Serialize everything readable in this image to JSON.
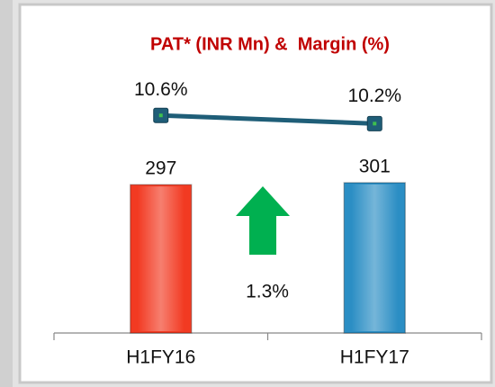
{
  "chart_data": {
    "type": "bar",
    "title": "PAT* (INR Mn) &  Margin (%)",
    "categories": [
      "H1FY16",
      "H1FY17"
    ],
    "series": [
      {
        "type": "bar",
        "colors": [
          "#f23a22",
          "#2b8ec4"
        ],
        "values": [
          297,
          301
        ]
      },
      {
        "type": "line",
        "axis": "y2",
        "color": "#1f5e78",
        "values": [
          10.6,
          10.2
        ],
        "value_labels": [
          "10.6%",
          "10.2%"
        ]
      }
    ],
    "annotation": "1.3%",
    "ylim": [
      0,
      600
    ],
    "y2lim": [
      0,
      14.6
    ]
  }
}
